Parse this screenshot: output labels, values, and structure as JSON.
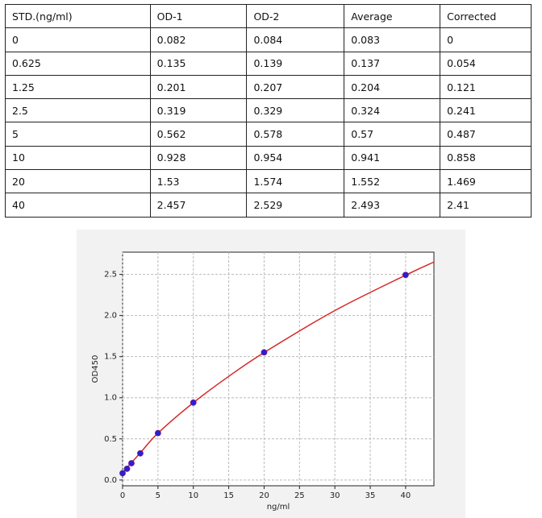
{
  "table": {
    "rows": [
      [
        "STD.(ng/ml)",
        "OD-1",
        "OD-2",
        "Average",
        "Corrected"
      ],
      [
        "0",
        "0.082",
        "0.084",
        "0.083",
        "0"
      ],
      [
        "0.625",
        "0.135",
        "0.139",
        "0.137",
        "0.054"
      ],
      [
        "1.25",
        "0.201",
        "0.207",
        "0.204",
        "0.121"
      ],
      [
        "2.5",
        "0.319",
        "0.329",
        "0.324",
        "0.241"
      ],
      [
        "5",
        "0.562",
        "0.578",
        "0.57",
        "0.487"
      ],
      [
        "10",
        "0.928",
        "0.954",
        "0.941",
        "0.858"
      ],
      [
        "20",
        "1.53",
        "1.574",
        "1.552",
        "1.469"
      ],
      [
        "40",
        "2.457",
        "2.529",
        "2.493",
        "2.41"
      ]
    ]
  },
  "chart_data": {
    "type": "scatter",
    "x_label": "ng/ml",
    "y_label": "OD450",
    "x": [
      0,
      0.625,
      1.25,
      2.5,
      5,
      10,
      20,
      40
    ],
    "values": [
      0.083,
      0.137,
      0.204,
      0.324,
      0.57,
      0.941,
      1.552,
      2.493
    ],
    "color": "#2a1fd6",
    "fit": {
      "color": "#d62728",
      "x": [
        0,
        2.5,
        5,
        10,
        15,
        20,
        30,
        40,
        44
      ],
      "values": [
        0.09,
        0.33,
        0.57,
        0.94,
        1.26,
        1.55,
        2.06,
        2.49,
        2.65
      ]
    },
    "xlim": [
      0,
      44
    ],
    "ylim": [
      -0.07,
      2.77
    ],
    "xticks": [
      0,
      5,
      10,
      15,
      20,
      25,
      30,
      35,
      40
    ],
    "yticks": [
      {
        "value": 0,
        "label": "0.0"
      },
      0.5,
      {
        "value": 1,
        "label": "1.0"
      },
      1.5,
      {
        "value": 2,
        "label": "2.0"
      },
      2.5
    ],
    "grid": true
  }
}
